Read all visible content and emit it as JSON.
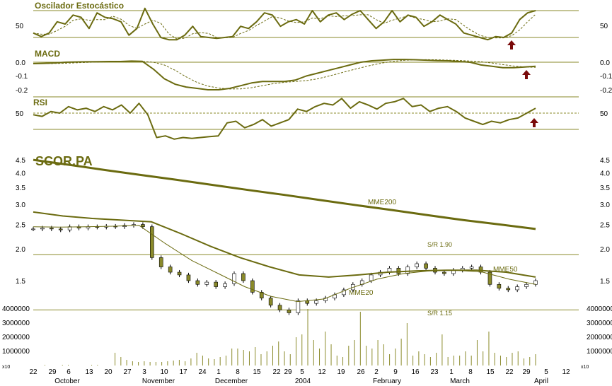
{
  "colors": {
    "line": "#6b6b10",
    "ref": "#8a8a2a",
    "arrow": "#7a0a0a",
    "volume": "#8a8a2a"
  },
  "chart_data": [
    {
      "type": "line",
      "title": "Oscilador Estocástico",
      "yticks": [
        "50"
      ],
      "ylim": [
        0,
        100
      ],
      "ref_levels": [
        80,
        20
      ],
      "series": [
        {
          "values": [
            30,
            22,
            30,
            55,
            50,
            70,
            65,
            40,
            75,
            65,
            62,
            55,
            25,
            40,
            85,
            50,
            20,
            15,
            15,
            25,
            45,
            22,
            20,
            18,
            20,
            22,
            45,
            40,
            55,
            75,
            70,
            45,
            55,
            60,
            50,
            80,
            55,
            70,
            75,
            60,
            72,
            80,
            60,
            40,
            55,
            80,
            55,
            70,
            65,
            45,
            55,
            70,
            60,
            50,
            30,
            25,
            20,
            15,
            22,
            20,
            30,
            60,
            75,
            80
          ]
        }
      ]
    },
    {
      "type": "line",
      "title": "MACD",
      "yticks": [
        "0.0",
        "-0.1",
        "-0.2"
      ],
      "ylim": [
        -0.22,
        0.02
      ],
      "ref_levels": [
        0.0
      ],
      "series": [
        {
          "values": [
            -0.01,
            -0.008,
            -0.005,
            0.0,
            0.002,
            0.003,
            0.004,
            0.005,
            0.005,
            0.008,
            0.006,
            -0.05,
            -0.12,
            -0.16,
            -0.18,
            -0.19,
            -0.2,
            -0.2,
            -0.19,
            -0.17,
            -0.15,
            -0.14,
            -0.14,
            -0.14,
            -0.13,
            -0.1,
            -0.08,
            -0.06,
            -0.04,
            -0.02,
            0.0,
            0.01,
            0.015,
            0.02,
            0.02,
            0.018,
            0.015,
            0.012,
            0.01,
            0.005,
            0.0,
            -0.02,
            -0.03,
            -0.04,
            -0.04,
            -0.035,
            -0.03
          ]
        }
      ]
    },
    {
      "type": "line",
      "title": "RSI",
      "yticks": [
        "50"
      ],
      "ylim": [
        0,
        100
      ],
      "ref_levels": [
        70,
        30
      ],
      "dashed_level": 50,
      "series": [
        {
          "values": [
            48,
            46,
            52,
            50,
            58,
            54,
            56,
            52,
            58,
            54,
            60,
            50,
            62,
            48,
            20,
            22,
            18,
            20,
            19,
            20,
            21,
            22,
            38,
            40,
            32,
            36,
            42,
            34,
            38,
            42,
            55,
            52,
            58,
            62,
            60,
            68,
            56,
            64,
            60,
            55,
            62,
            64,
            68,
            58,
            60,
            52,
            56,
            58,
            52,
            44,
            40,
            36,
            40,
            38,
            42,
            44,
            50,
            56
          ]
        }
      ]
    },
    {
      "type": "candlestick",
      "title": "SCOR.PA",
      "yticks": [
        "4.5",
        "4.0",
        "3.5",
        "3.0",
        "2.5",
        "2.0",
        "1.5"
      ],
      "yscale": "log",
      "ylim": [
        1.05,
        4.7
      ],
      "levels": [
        {
          "label": "S/R 1.90",
          "value": 1.9
        },
        {
          "label": "S/R 1.15",
          "value": 1.15
        }
      ],
      "close": [
        2.4,
        2.42,
        2.4,
        2.38,
        2.45,
        2.42,
        2.45,
        2.44,
        2.46,
        2.45,
        2.48,
        2.5,
        2.45,
        1.85,
        1.7,
        1.62,
        1.58,
        1.5,
        1.45,
        1.48,
        1.42,
        1.46,
        1.6,
        1.5,
        1.35,
        1.28,
        1.2,
        1.15,
        1.12,
        1.25,
        1.22,
        1.25,
        1.28,
        1.32,
        1.38,
        1.45,
        1.5,
        1.58,
        1.62,
        1.68,
        1.6,
        1.7,
        1.75,
        1.68,
        1.62,
        1.6,
        1.65,
        1.68,
        1.7,
        1.62,
        1.45,
        1.4,
        1.38,
        1.42,
        1.45,
        1.5
      ],
      "series": [
        {
          "name": "MME200",
          "values": [
            4.5,
            4.3,
            4.1,
            3.92,
            3.75,
            3.58,
            3.42,
            3.27,
            3.12,
            2.98,
            2.85,
            2.72,
            2.6,
            2.5,
            2.4
          ]
        },
        {
          "name": "MME50",
          "values": [
            2.8,
            2.7,
            2.64,
            2.6,
            2.56,
            2.3,
            2.05,
            1.85,
            1.7,
            1.58,
            1.55,
            1.58,
            1.62,
            1.64,
            1.65,
            1.65,
            1.62,
            1.55
          ]
        },
        {
          "name": "MME20",
          "values": [
            2.45,
            2.44,
            2.45,
            2.46,
            2.48,
            2.1,
            1.8,
            1.6,
            1.42,
            1.3,
            1.24,
            1.27,
            1.4,
            1.52,
            1.6,
            1.64,
            1.65,
            1.62,
            1.52,
            1.45
          ]
        }
      ]
    },
    {
      "type": "bar",
      "title": "",
      "yticks": [
        "4000000",
        "3000000",
        "2000000",
        "1000000"
      ],
      "ylim": [
        0,
        4000000
      ],
      "unit_label": "x10",
      "values": [
        0,
        0,
        50000,
        0,
        0,
        50000,
        50000,
        0,
        0,
        0,
        50000,
        50000,
        0,
        0,
        900000,
        600000,
        400000,
        300000,
        250000,
        300000,
        250000,
        250000,
        250000,
        300000,
        350000,
        400000,
        300000,
        500000,
        900000,
        700000,
        500000,
        450000,
        600000,
        700000,
        1200000,
        1200000,
        1100000,
        1000000,
        1300000,
        800000,
        1000000,
        1400000,
        1700000,
        1000000,
        800000,
        2000000,
        2200000,
        4000000,
        1800000,
        1200000,
        2400000,
        1500000,
        700000,
        600000,
        1400000,
        1800000,
        3800000,
        1400000,
        1200000,
        1800000,
        1500000,
        800000,
        1200000,
        1900000,
        3000000,
        700000,
        1000000,
        800000,
        600000,
        900000,
        2200000,
        600000,
        700000,
        700000,
        1000000,
        700000,
        1800000,
        1000000,
        2400000,
        900000,
        700000,
        600000,
        900000,
        1000000,
        500000,
        600000,
        800000
      ]
    }
  ],
  "xaxis": {
    "days": [
      "22",
      "29",
      "6",
      "13",
      "20",
      "27",
      "3",
      "10",
      "17",
      "24",
      "1",
      "8",
      "15",
      "22",
      "29",
      "5",
      "12",
      "19",
      "26",
      "2",
      "9",
      "16",
      "23",
      "1",
      "8",
      "15",
      "22",
      "29",
      "5",
      "12"
    ],
    "months": [
      "October",
      "November",
      "December",
      "2004",
      "February",
      "March",
      "April"
    ]
  }
}
